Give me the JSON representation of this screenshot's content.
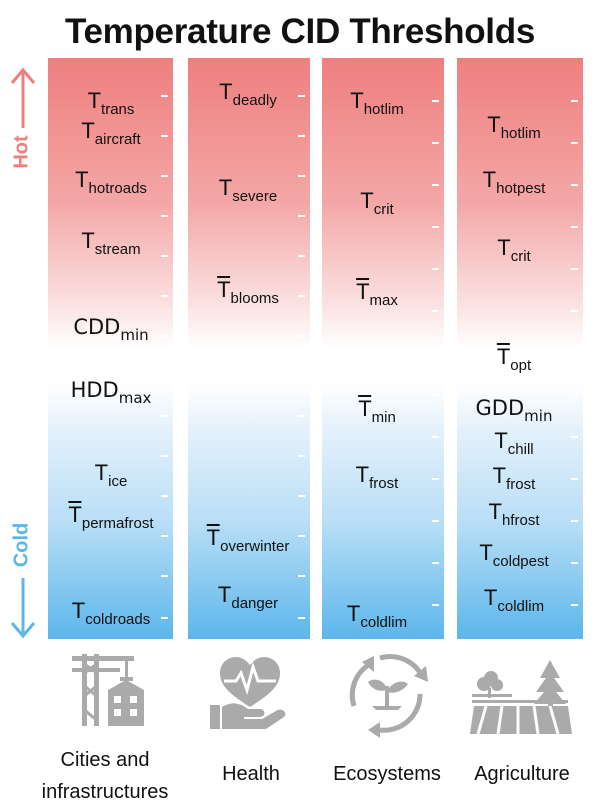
{
  "title": "Temperature CID Thresholds",
  "direction": {
    "hot": "Hot",
    "cold": "Cold"
  },
  "colors": {
    "hot": "#ef7f7f",
    "cold": "#5cb6eb",
    "middle": "#ffffff",
    "icon": "#aaaaaa"
  },
  "columns": [
    {
      "sector": "Cities and infrastructures",
      "sector_lines": [
        "Cities and",
        "infrastructures"
      ],
      "icon": "cities-icon",
      "labels": [
        {
          "base": "T",
          "sub": "trans"
        },
        {
          "base": "T",
          "sub": "aircraft"
        },
        {
          "base": "T",
          "sub": "hotroads"
        },
        {
          "base": "T",
          "sub": "stream"
        },
        {
          "base": "CDD",
          "sub": "min"
        },
        {
          "base": "HDD",
          "sub": "max"
        },
        {
          "base": "T",
          "sub": "ice"
        },
        {
          "base": "T",
          "sub": "permafrost",
          "bar": true
        },
        {
          "base": "T",
          "sub": "coldroads"
        }
      ]
    },
    {
      "sector": "Health",
      "sector_lines": [
        "Health"
      ],
      "icon": "health-icon",
      "labels": [
        {
          "base": "T",
          "sub": "deadly"
        },
        {
          "base": "T",
          "sub": "severe"
        },
        {
          "base": "T",
          "sub": "blooms",
          "bar": true
        },
        {
          "base": "T",
          "sub": "overwinter",
          "bar": true
        },
        {
          "base": "T",
          "sub": "danger"
        }
      ]
    },
    {
      "sector": "Ecosystems",
      "sector_lines": [
        "Ecosystems"
      ],
      "icon": "ecosystems-icon",
      "labels": [
        {
          "base": "T",
          "sub": "hotlim"
        },
        {
          "base": "T",
          "sub": "crit"
        },
        {
          "base": "T",
          "sub": "max",
          "bar": true
        },
        {
          "base": "T",
          "sub": "min",
          "bar": true
        },
        {
          "base": "T",
          "sub": "frost"
        },
        {
          "base": "T",
          "sub": "coldlim"
        }
      ]
    },
    {
      "sector": "Agriculture",
      "sector_lines": [
        "Agriculture"
      ],
      "icon": "agriculture-icon",
      "labels": [
        {
          "base": "T",
          "sub": "hotlim"
        },
        {
          "base": "T",
          "sub": "hotpest"
        },
        {
          "base": "T",
          "sub": "crit"
        },
        {
          "base": "T",
          "sub": "opt",
          "bar": true
        },
        {
          "base": "GDD",
          "sub": "min"
        },
        {
          "base": "T",
          "sub": "chill"
        },
        {
          "base": "T",
          "sub": "frost"
        },
        {
          "base": "T",
          "sub": "hfrost"
        },
        {
          "base": "T",
          "sub": "coldpest"
        },
        {
          "base": "T",
          "sub": "coldlim"
        }
      ]
    }
  ]
}
